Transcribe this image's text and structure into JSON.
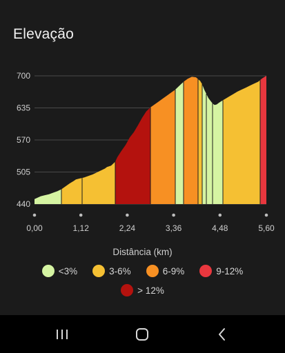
{
  "title": "Elevação",
  "chart_data": {
    "type": "area",
    "xlabel": "Distância (km)",
    "ylabel": "",
    "x_ticks": [
      "0,00",
      "1,12",
      "2,24",
      "3,36",
      "4,48",
      "5,60"
    ],
    "y_ticks": [
      "700",
      "635",
      "570",
      "505",
      "440"
    ],
    "xlim": [
      0,
      5.6
    ],
    "ylim": [
      440,
      700
    ],
    "grid": true,
    "series": [
      {
        "x": [
          0.0,
          0.05,
          0.15,
          0.25,
          0.35,
          0.45,
          0.55,
          0.65,
          0.75,
          0.85,
          0.95,
          1.0,
          1.1,
          1.2,
          1.3,
          1.4,
          1.5,
          1.6,
          1.7,
          1.75,
          1.85,
          1.95,
          2.0,
          2.1,
          2.2,
          2.3,
          2.4,
          2.5,
          2.6,
          2.7,
          2.8,
          2.9,
          3.0,
          3.1,
          3.2,
          3.3,
          3.4,
          3.5,
          3.6,
          3.7,
          3.8,
          3.9,
          4.0,
          4.05,
          4.1,
          4.2,
          4.3,
          4.35,
          4.4,
          4.45,
          4.5,
          4.6,
          4.7,
          4.8,
          4.9,
          5.0,
          5.1,
          5.2,
          5.3,
          5.4,
          5.5,
          5.6
        ],
        "y": [
          450,
          452,
          456,
          458,
          460,
          463,
          466,
          470,
          476,
          482,
          487,
          490,
          492,
          494,
          497,
          500,
          504,
          508,
          512,
          515,
          518,
          526,
          535,
          548,
          560,
          575,
          586,
          600,
          615,
          628,
          636,
          642,
          648,
          654,
          660,
          666,
          672,
          680,
          688,
          694,
          698,
          697,
          690,
          683,
          672,
          655,
          644,
          641,
          642,
          645,
          648,
          653,
          658,
          663,
          668,
          672,
          676,
          680,
          684,
          688,
          695,
          700
        ]
      }
    ],
    "segments": [
      {
        "from": 0.0,
        "to": 0.65,
        "class": "<3%"
      },
      {
        "from": 0.65,
        "to": 1.15,
        "class": "3-6%"
      },
      {
        "from": 1.15,
        "to": 1.95,
        "class": "3-6%"
      },
      {
        "from": 1.95,
        "to": 2.8,
        "class": "> 12%"
      },
      {
        "from": 2.8,
        "to": 3.4,
        "class": "6-9%"
      },
      {
        "from": 3.4,
        "to": 3.6,
        "class": "<3%"
      },
      {
        "from": 3.6,
        "to": 3.95,
        "class": "6-9%"
      },
      {
        "from": 3.95,
        "to": 4.05,
        "class": "3-6%"
      },
      {
        "from": 4.05,
        "to": 4.15,
        "class": "<3%"
      },
      {
        "from": 4.15,
        "to": 4.3,
        "class": "<3%"
      },
      {
        "from": 4.3,
        "to": 4.55,
        "class": "<3%"
      },
      {
        "from": 4.55,
        "to": 5.45,
        "class": "3-6%"
      },
      {
        "from": 5.45,
        "to": 5.6,
        "class": "9-12%"
      }
    ]
  },
  "legend": [
    {
      "label": "<3%",
      "color": "#d5f4a2"
    },
    {
      "label": "3-6%",
      "color": "#f5c033"
    },
    {
      "label": "6-9%",
      "color": "#f79023"
    },
    {
      "label": "9-12%",
      "color": "#e9373e"
    },
    {
      "label": "> 12%",
      "color": "#b4120e"
    }
  ],
  "navbar": {
    "recents_icon": "recents-icon",
    "home_icon": "home-icon",
    "back_icon": "back-icon"
  }
}
